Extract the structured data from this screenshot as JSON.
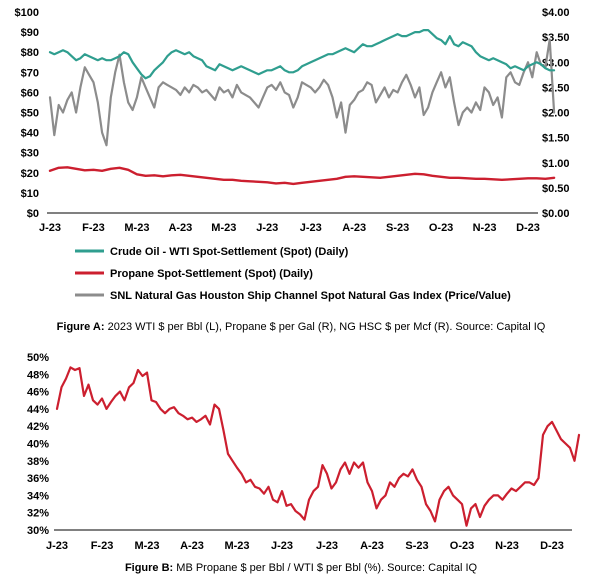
{
  "chart_data": [
    {
      "type": "line",
      "x_categories": [
        "J-23",
        "F-23",
        "M-23",
        "A-23",
        "M-23",
        "J-23",
        "J-23",
        "A-23",
        "S-23",
        "O-23",
        "N-23",
        "D-23"
      ],
      "y_left_ticks": [
        "$0",
        "$10",
        "$20",
        "$30",
        "$40",
        "$50",
        "$60",
        "$70",
        "$80",
        "$90",
        "$100"
      ],
      "y_right_ticks": [
        "$0.00",
        "$0.50",
        "$1.00",
        "$1.50",
        "$2.00",
        "$2.50",
        "$3.00",
        "$3.50",
        "$4.00"
      ],
      "ylim_left": [
        0,
        100
      ],
      "ylim_right": [
        0,
        4
      ],
      "series": [
        {
          "name": "Crude Oil - WTI Spot-Settlement (Spot) (Daily)",
          "axis": "left",
          "color": "#2f9e8f",
          "x": [
            0.0,
            0.1,
            0.2,
            0.3,
            0.4,
            0.5,
            0.6,
            0.7,
            0.8,
            0.9,
            1.0,
            1.1,
            1.2,
            1.3,
            1.4,
            1.5,
            1.6,
            1.7,
            1.8,
            1.9,
            2.0,
            2.1,
            2.2,
            2.3,
            2.4,
            2.5,
            2.6,
            2.7,
            2.8,
            2.9,
            3.0,
            3.1,
            3.2,
            3.3,
            3.4,
            3.5,
            3.6,
            3.7,
            3.8,
            3.9,
            4.0,
            4.1,
            4.2,
            4.3,
            4.4,
            4.5,
            4.6,
            4.7,
            4.8,
            4.9,
            5.0,
            5.1,
            5.2,
            5.3,
            5.4,
            5.5,
            5.6,
            5.7,
            5.8,
            5.9,
            6.0,
            6.1,
            6.2,
            6.3,
            6.4,
            6.5,
            6.6,
            6.7,
            6.8,
            6.9,
            7.0,
            7.1,
            7.2,
            7.3,
            7.4,
            7.5,
            7.6,
            7.7,
            7.8,
            7.9,
            8.0,
            8.1,
            8.2,
            8.3,
            8.4,
            8.5,
            8.6,
            8.7,
            8.8,
            8.9,
            9.0,
            9.1,
            9.2,
            9.3,
            9.4,
            9.5,
            9.6,
            9.7,
            9.8,
            9.9,
            10.0,
            10.1,
            10.2,
            10.3,
            10.4,
            10.5,
            10.6,
            10.7,
            10.8,
            10.9,
            11.0,
            11.1,
            11.2,
            11.3,
            11.4,
            11.5,
            11.6
          ],
          "values": [
            80,
            79,
            80,
            81,
            80,
            78,
            76,
            77,
            79,
            78,
            77,
            76,
            77,
            76,
            76,
            77,
            78,
            80,
            79,
            75,
            72,
            69,
            67,
            68,
            71,
            73,
            75,
            78,
            80,
            81,
            80,
            79,
            80,
            78,
            77,
            76,
            73,
            72,
            71,
            74,
            73,
            72,
            71,
            72,
            73,
            72,
            71,
            70,
            69,
            70,
            71,
            71,
            72,
            73,
            71,
            70,
            70,
            71,
            73,
            74,
            75,
            76,
            77,
            78,
            79,
            79,
            80,
            81,
            82,
            81,
            80,
            82,
            84,
            83,
            83,
            84,
            85,
            86,
            87,
            88,
            89,
            88,
            88,
            89,
            90,
            90,
            91,
            91,
            89,
            87,
            86,
            84,
            88,
            84,
            83,
            85,
            84,
            83,
            80,
            78,
            77,
            76,
            77,
            76,
            75,
            74,
            72,
            73,
            72,
            71,
            73,
            74,
            75,
            74,
            72,
            71,
            71
          ],
          "description": "WTI crude oil spot, $ per Bbl"
        },
        {
          "name": "Propane Spot-Settlement (Spot) (Daily)",
          "axis": "right",
          "color": "#cc1f2f",
          "x": [
            0.0,
            0.2,
            0.4,
            0.6,
            0.8,
            1.0,
            1.2,
            1.4,
            1.6,
            1.8,
            2.0,
            2.2,
            2.4,
            2.6,
            2.8,
            3.0,
            3.2,
            3.4,
            3.6,
            3.8,
            4.0,
            4.2,
            4.4,
            4.6,
            4.8,
            5.0,
            5.2,
            5.4,
            5.6,
            5.8,
            6.0,
            6.2,
            6.4,
            6.6,
            6.8,
            7.0,
            7.2,
            7.4,
            7.6,
            7.8,
            8.0,
            8.2,
            8.4,
            8.6,
            8.8,
            9.0,
            9.2,
            9.4,
            9.6,
            9.8,
            10.0,
            10.2,
            10.4,
            10.6,
            10.8,
            11.0,
            11.2,
            11.4,
            11.6
          ],
          "values": [
            0.84,
            0.9,
            0.91,
            0.88,
            0.85,
            0.86,
            0.84,
            0.88,
            0.9,
            0.86,
            0.77,
            0.74,
            0.75,
            0.73,
            0.75,
            0.76,
            0.74,
            0.72,
            0.7,
            0.68,
            0.66,
            0.66,
            0.64,
            0.63,
            0.62,
            0.61,
            0.59,
            0.6,
            0.58,
            0.6,
            0.62,
            0.64,
            0.66,
            0.68,
            0.72,
            0.73,
            0.72,
            0.71,
            0.7,
            0.72,
            0.74,
            0.76,
            0.78,
            0.77,
            0.74,
            0.72,
            0.7,
            0.7,
            0.69,
            0.68,
            0.68,
            0.67,
            0.66,
            0.67,
            0.68,
            0.69,
            0.69,
            0.68,
            0.7
          ],
          "description": "Propane spot, $ per Gal"
        },
        {
          "name": "SNL Natural Gas Houston Ship Channel Spot Natural Gas Index (Price/Value)",
          "axis": "right",
          "color": "#8c8c8c",
          "x": [
            0.0,
            0.1,
            0.2,
            0.3,
            0.4,
            0.5,
            0.6,
            0.7,
            0.8,
            0.9,
            1.0,
            1.1,
            1.2,
            1.3,
            1.4,
            1.5,
            1.6,
            1.7,
            1.8,
            1.9,
            2.0,
            2.1,
            2.2,
            2.3,
            2.4,
            2.5,
            2.6,
            2.7,
            2.8,
            2.9,
            3.0,
            3.1,
            3.2,
            3.3,
            3.4,
            3.5,
            3.6,
            3.7,
            3.8,
            3.9,
            4.0,
            4.1,
            4.2,
            4.3,
            4.4,
            4.5,
            4.6,
            4.7,
            4.8,
            4.9,
            5.0,
            5.1,
            5.2,
            5.3,
            5.4,
            5.5,
            5.6,
            5.7,
            5.8,
            5.9,
            6.0,
            6.1,
            6.2,
            6.3,
            6.4,
            6.5,
            6.6,
            6.7,
            6.8,
            6.9,
            7.0,
            7.1,
            7.2,
            7.3,
            7.4,
            7.5,
            7.6,
            7.7,
            7.8,
            7.9,
            8.0,
            8.1,
            8.2,
            8.3,
            8.4,
            8.5,
            8.6,
            8.7,
            8.8,
            8.9,
            9.0,
            9.1,
            9.2,
            9.3,
            9.4,
            9.5,
            9.6,
            9.7,
            9.8,
            9.9,
            10.0,
            10.1,
            10.2,
            10.3,
            10.4,
            10.5,
            10.6,
            10.7,
            10.8,
            10.9,
            11.0,
            11.1,
            11.2,
            11.3,
            11.4,
            11.5,
            11.6
          ],
          "values": [
            2.3,
            1.55,
            2.15,
            2.0,
            2.25,
            2.4,
            2.0,
            2.5,
            2.9,
            2.75,
            2.6,
            2.2,
            1.6,
            1.35,
            2.3,
            2.8,
            3.15,
            2.6,
            2.2,
            2.05,
            2.3,
            2.7,
            2.5,
            2.3,
            2.1,
            2.5,
            2.6,
            2.55,
            2.5,
            2.45,
            2.35,
            2.5,
            2.4,
            2.55,
            2.5,
            2.4,
            2.45,
            2.35,
            2.25,
            2.5,
            2.4,
            2.45,
            2.3,
            2.55,
            2.4,
            2.35,
            2.3,
            2.2,
            2.1,
            2.3,
            2.5,
            2.55,
            2.45,
            2.6,
            2.4,
            2.35,
            2.1,
            2.3,
            2.6,
            2.55,
            2.5,
            2.4,
            2.5,
            2.65,
            2.55,
            2.3,
            1.9,
            2.2,
            1.6,
            2.15,
            2.25,
            2.4,
            2.45,
            2.6,
            2.55,
            2.2,
            2.35,
            2.5,
            2.3,
            2.45,
            2.4,
            2.6,
            2.75,
            2.55,
            2.3,
            2.5,
            1.95,
            2.1,
            2.4,
            2.6,
            2.8,
            2.5,
            2.7,
            2.2,
            1.75,
            2.0,
            2.1,
            2.0,
            2.2,
            2.05,
            2.5,
            2.4,
            2.15,
            2.3,
            1.9,
            2.7,
            2.8,
            2.6,
            2.55,
            2.8,
            3.0,
            2.7,
            3.2,
            2.95,
            2.9,
            3.45,
            2.0
          ],
          "description": "Houston Ship Channel natural gas, $ per Mcf"
        }
      ]
    },
    {
      "type": "line",
      "x_categories": [
        "J-23",
        "F-23",
        "M-23",
        "A-23",
        "M-23",
        "J-23",
        "J-23",
        "A-23",
        "S-23",
        "O-23",
        "N-23",
        "D-23"
      ],
      "y_ticks": [
        "30%",
        "32%",
        "34%",
        "36%",
        "38%",
        "40%",
        "42%",
        "44%",
        "46%",
        "48%",
        "50%"
      ],
      "ylim": [
        30,
        50
      ],
      "series": [
        {
          "name": "MB Propane $ per Bbl / WTI $ per Bbl (%)",
          "color": "#cc1f2f",
          "x": [
            0.0,
            0.1,
            0.2,
            0.3,
            0.4,
            0.5,
            0.6,
            0.7,
            0.8,
            0.9,
            1.0,
            1.1,
            1.2,
            1.3,
            1.4,
            1.5,
            1.6,
            1.7,
            1.8,
            1.9,
            2.0,
            2.1,
            2.2,
            2.3,
            2.4,
            2.5,
            2.6,
            2.7,
            2.8,
            2.9,
            3.0,
            3.1,
            3.2,
            3.3,
            3.4,
            3.5,
            3.6,
            3.7,
            3.8,
            3.9,
            4.0,
            4.1,
            4.2,
            4.3,
            4.4,
            4.5,
            4.6,
            4.7,
            4.8,
            4.9,
            5.0,
            5.1,
            5.2,
            5.3,
            5.4,
            5.5,
            5.6,
            5.7,
            5.8,
            5.9,
            6.0,
            6.1,
            6.2,
            6.3,
            6.4,
            6.5,
            6.6,
            6.7,
            6.8,
            6.9,
            7.0,
            7.1,
            7.2,
            7.3,
            7.4,
            7.5,
            7.6,
            7.7,
            7.8,
            7.9,
            8.0,
            8.1,
            8.2,
            8.3,
            8.4,
            8.5,
            8.6,
            8.7,
            8.8,
            8.9,
            9.0,
            9.1,
            9.2,
            9.3,
            9.4,
            9.5,
            9.6,
            9.7,
            9.8,
            9.9,
            10.0,
            10.1,
            10.2,
            10.3,
            10.4,
            10.5,
            10.6,
            10.7,
            10.8,
            10.9,
            11.0,
            11.1,
            11.2,
            11.3,
            11.4,
            11.5,
            11.6
          ],
          "values": [
            44.0,
            46.5,
            47.5,
            48.8,
            48.5,
            48.7,
            45.5,
            46.8,
            45.0,
            44.5,
            45.2,
            44.0,
            44.8,
            45.5,
            46.0,
            45.0,
            46.5,
            47.0,
            48.5,
            47.8,
            48.2,
            45.0,
            44.8,
            44.0,
            43.5,
            44.0,
            44.2,
            43.5,
            43.2,
            42.8,
            43.0,
            42.5,
            42.8,
            43.2,
            42.2,
            44.5,
            44.0,
            41.5,
            38.8,
            38.0,
            37.2,
            36.5,
            35.5,
            35.8,
            35.0,
            34.8,
            34.2,
            35.0,
            33.5,
            33.2,
            34.5,
            32.8,
            33.0,
            32.2,
            31.8,
            31.2,
            33.5,
            34.5,
            35.0,
            37.5,
            36.5,
            34.8,
            35.5,
            37.0,
            37.8,
            36.5,
            37.8,
            37.2,
            37.8,
            35.5,
            34.5,
            32.5,
            33.5,
            34.0,
            35.5,
            35.0,
            36.0,
            36.5,
            36.2,
            37.0,
            35.8,
            35.0,
            33.0,
            32.2,
            31.0,
            33.5,
            34.5,
            35.0,
            34.0,
            33.5,
            33.0,
            30.5,
            32.5,
            33.0,
            31.5,
            32.8,
            33.5,
            34.0,
            34.0,
            33.5,
            34.2,
            34.8,
            34.5,
            35.0,
            35.5,
            35.5,
            35.2,
            36.0,
            41.0,
            42.0,
            42.5,
            41.5,
            40.5,
            40.0,
            39.5,
            38.0,
            41.0
          ],
          "description": "Mont Belvieu propane to WTI ratio"
        }
      ]
    }
  ],
  "legend": [
    {
      "label": "Crude Oil - WTI Spot-Settlement (Spot) (Daily)",
      "color": "#2f9e8f"
    },
    {
      "label": "Propane Spot-Settlement (Spot) (Daily)",
      "color": "#cc1f2f"
    },
    {
      "label": "SNL Natural Gas Houston Ship Channel Spot Natural Gas Index (Price/Value)",
      "color": "#8c8c8c"
    }
  ],
  "captions": {
    "a_label": "Figure A:",
    "a_text": " 2023 WTI $ per Bbl (L), Propane $ per Gal (R), NG HSC $ per Mcf (R). Source: Capital IQ",
    "b_label": "Figure B:",
    "b_text": " MB Propane $ per Bbl / WTI $ per Bbl (%). Source: Capital IQ"
  }
}
